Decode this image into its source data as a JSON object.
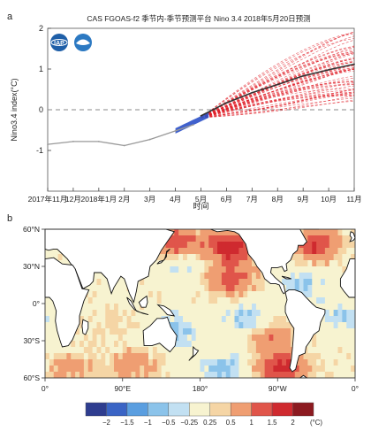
{
  "panel_a": {
    "label": "a",
    "title": "CAS FGOAS-f2 季节内-季节预测平台 Nino 3.4 2018年5月20日预测",
    "logos": [
      "iap-logo",
      "cas-logo"
    ]
  },
  "panel_b": {
    "label": "b"
  },
  "chart_data": [
    {
      "type": "line",
      "title": "CAS FGOAS-f2 季节内-季节预测平台 Nino 3.4 2018年5月20日预测",
      "xlabel": "时间",
      "ylabel": "Nino3.4 index(°C)",
      "categories": [
        "2017年11月",
        "12月",
        "2018年1月",
        "2月",
        "3月",
        "4月",
        "5月",
        "6月",
        "7月",
        "8月",
        "9月",
        "10月",
        "11月"
      ],
      "ylim": [
        -2,
        2
      ],
      "yticks": [
        "-1",
        "0",
        "1",
        "2"
      ],
      "reference_line": {
        "y": 0,
        "style": "dashed"
      },
      "series": [
        {
          "role": "observed",
          "color": "#999999",
          "x": [
            0,
            1,
            2,
            3,
            4,
            5,
            5.7
          ],
          "values": [
            -0.85,
            -0.78,
            -0.78,
            -0.88,
            -0.73,
            -0.52,
            -0.37
          ]
        },
        {
          "role": "forecast-mean",
          "color": "#333333",
          "x": [
            6,
            7,
            8,
            9,
            10,
            11,
            12
          ],
          "values": [
            -0.15,
            0.17,
            0.42,
            0.62,
            0.83,
            0.98,
            1.12
          ]
        }
      ],
      "hindcast_band": {
        "color": "#2b50c8",
        "x_start": 5.0,
        "x_end": 6.3
      },
      "ensemble": {
        "color": "#e0202a",
        "x_start": 6.0,
        "x_end": 12,
        "members": 60,
        "start_value": -0.2,
        "end_range": [
          0.2,
          2.0
        ]
      }
    },
    {
      "type": "heatmap",
      "title": "",
      "x_ticks": [
        "0°",
        "90°E",
        "180°",
        "90°W",
        "0°"
      ],
      "y_ticks": [
        "60°N",
        "30°N",
        "0°",
        "30°S",
        "60°S"
      ],
      "colorbar": {
        "ticks": [
          "−2",
          "−1.5",
          "−1",
          "−0.5",
          "−0.25",
          "0.25",
          "0.5",
          "1",
          "1.5",
          "2"
        ],
        "unit": "(°C)",
        "colors": [
          "#2e3d8f",
          "#3a64c5",
          "#5a9ee0",
          "#8bc3ea",
          "#c2e0f2",
          "#f7f3d0",
          "#f5d5a5",
          "#ef9e72",
          "#e0554a",
          "#cf2a2f",
          "#8c1a20"
        ]
      },
      "anomaly_regions": [
        {
          "lon": 215,
          "lat": 45,
          "value": 1.7
        },
        {
          "lon": 315,
          "lat": 47,
          "value": 1.5
        },
        {
          "lon": 215,
          "lat": 20,
          "value": 1.2
        },
        {
          "lon": 152,
          "lat": 50,
          "value": 1.3
        },
        {
          "lon": 235,
          "lat": -15,
          "value": -0.8
        },
        {
          "lon": 150,
          "lat": -22,
          "value": -0.8
        },
        {
          "lon": 260,
          "lat": -25,
          "value": 1.0
        },
        {
          "lon": 275,
          "lat": -52,
          "value": 1.6
        },
        {
          "lon": 205,
          "lat": -52,
          "value": -0.7
        },
        {
          "lon": 345,
          "lat": -10,
          "value": -0.6
        },
        {
          "lon": 80,
          "lat": -15,
          "value": 0.3
        },
        {
          "lon": 100,
          "lat": -50,
          "value": 0.7
        },
        {
          "lon": 30,
          "lat": -52,
          "value": 0.6
        },
        {
          "lon": 165,
          "lat": 30,
          "value": -0.4
        },
        {
          "lon": 300,
          "lat": 15,
          "value": -0.6
        }
      ]
    }
  ]
}
